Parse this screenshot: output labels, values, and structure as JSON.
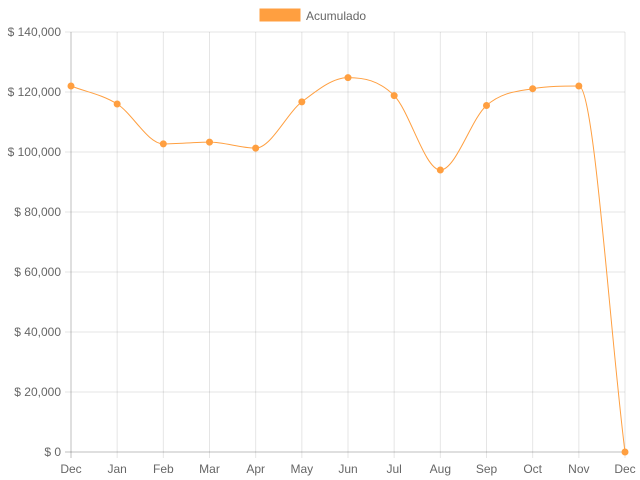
{
  "chart_data": {
    "type": "line",
    "categories": [
      "Dec",
      "Jan",
      "Feb",
      "Mar",
      "Apr",
      "May",
      "Jun",
      "Jul",
      "Aug",
      "Sep",
      "Oct",
      "Nov",
      "Dec"
    ],
    "series": [
      {
        "name": "Acumulado",
        "color": "#ff9f40",
        "values": [
          122000,
          116000,
          102700,
          103300,
          101300,
          116700,
          124800,
          118800,
          94000,
          115500,
          121100,
          122000,
          0
        ]
      }
    ],
    "ylim": [
      0,
      140000
    ],
    "y_ticks": [
      0,
      20000,
      40000,
      60000,
      80000,
      100000,
      120000,
      140000
    ],
    "y_tick_labels": [
      "$ 0",
      "$ 20,000",
      "$ 40,000",
      "$ 60,000",
      "$ 80,000",
      "$ 100,000",
      "$ 120,000",
      "$ 140,000"
    ],
    "grid": true,
    "legend_position": "top-center",
    "curve": "smooth"
  }
}
